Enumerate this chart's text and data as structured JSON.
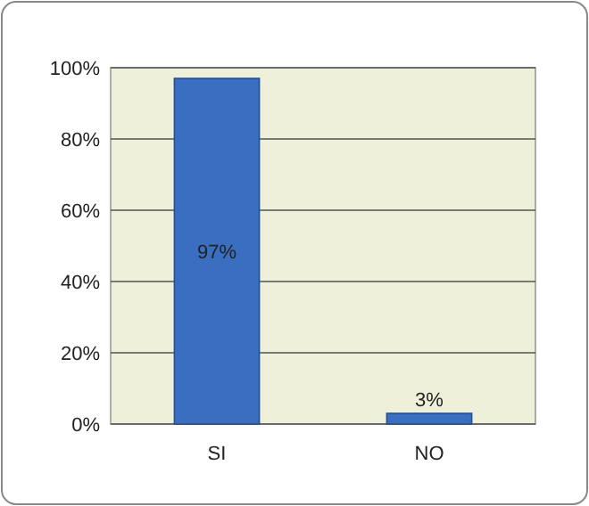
{
  "chart_data": {
    "type": "bar",
    "categories": [
      "SI",
      "NO"
    ],
    "values": [
      97,
      3
    ],
    "color": "#3a6ec0",
    "value_labels": [
      "97%",
      "3%"
    ],
    "ylim": [
      0,
      100
    ],
    "yticks": [
      {
        "value": 0,
        "label": "0%"
      },
      {
        "value": 20,
        "label": "20%"
      },
      {
        "value": 40,
        "label": "40%"
      },
      {
        "value": 60,
        "label": "60%"
      },
      {
        "value": 80,
        "label": "80%"
      },
      {
        "value": 100,
        "label": "100%"
      }
    ],
    "grid": "y"
  }
}
